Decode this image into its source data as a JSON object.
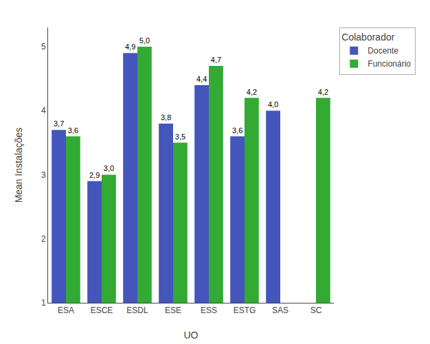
{
  "chart_data": {
    "type": "bar",
    "categories": [
      "ESA",
      "ESCE",
      "ESDL",
      "ESE",
      "ESS",
      "ESTG",
      "SAS",
      "SC"
    ],
    "xlabel": "UO",
    "ylabel": "Mean Instalações",
    "series": [
      {
        "name": "Docente",
        "color": "#4455bb",
        "values": [
          3.7,
          2.9,
          4.9,
          3.8,
          4.4,
          3.6,
          4.0,
          null
        ],
        "value_labels": [
          "3,7",
          "2,9",
          "4,9",
          "3,8",
          "4,4",
          "3,6",
          "4,0",
          null
        ]
      },
      {
        "name": "Funcionário",
        "color": "#33aa33",
        "values": [
          3.6,
          3.0,
          5.0,
          3.5,
          4.7,
          4.2,
          null,
          4.2
        ],
        "value_labels": [
          "3,6",
          "3,0",
          "5,0",
          "3,5",
          "4,7",
          "4,2",
          null,
          "4,2"
        ]
      }
    ],
    "ylim": [
      1,
      5.3
    ],
    "yticks": [
      1,
      2,
      3,
      4,
      5
    ],
    "grid": false,
    "data_labels": true,
    "legend": "upper right",
    "legend_title": "Colaborador"
  }
}
